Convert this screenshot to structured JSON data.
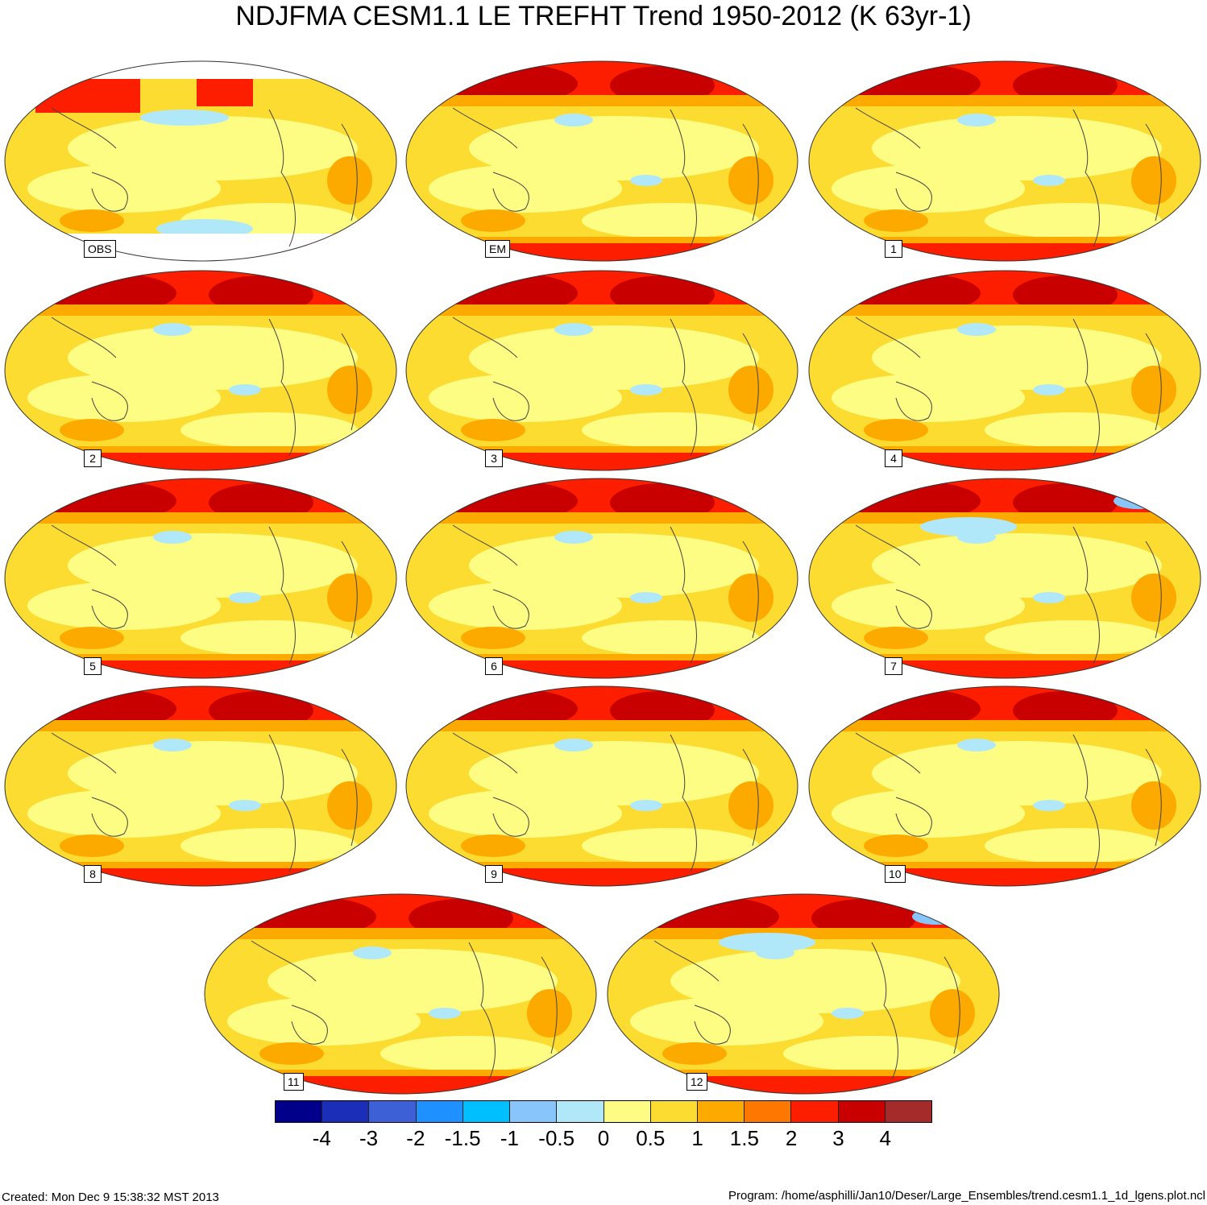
{
  "title": "NDJFMA CESM1.1 LE TREFHT Trend 1950-2012 (K 63yr-1)",
  "panels": [
    {
      "label": "OBS",
      "style": "obs"
    },
    {
      "label": "EM",
      "style": "em"
    },
    {
      "label": "1",
      "style": "member"
    },
    {
      "label": "2",
      "style": "member"
    },
    {
      "label": "3",
      "style": "member"
    },
    {
      "label": "4",
      "style": "member"
    },
    {
      "label": "5",
      "style": "member"
    },
    {
      "label": "6",
      "style": "member"
    },
    {
      "label": "7",
      "style": "cold"
    },
    {
      "label": "8",
      "style": "member"
    },
    {
      "label": "9",
      "style": "member"
    },
    {
      "label": "10",
      "style": "member"
    },
    {
      "label": "11",
      "style": "member"
    },
    {
      "label": "12",
      "style": "cold"
    }
  ],
  "colorbar": {
    "colors": [
      "#00008b",
      "#1a2eb8",
      "#3e60d6",
      "#1e90ff",
      "#00bfff",
      "#87c5fa",
      "#b0e8fa",
      "#fdfd84",
      "#fddc32",
      "#fdaa00",
      "#fd7800",
      "#fd1e00",
      "#c80000",
      "#a52a2a"
    ],
    "labels": [
      "-4",
      "-3",
      "-2",
      "-1.5",
      "-1",
      "-0.5",
      "0",
      "0.5",
      "1",
      "1.5",
      "2",
      "3",
      "4"
    ]
  },
  "footer": {
    "created": "Created: Mon Dec  9 15:38:32 MST 2013",
    "program": "Program: /home/asphilli/Jan10/Deser/Large_Ensembles/trend.cesm1.1_1d_lgens.plot.ncl"
  }
}
